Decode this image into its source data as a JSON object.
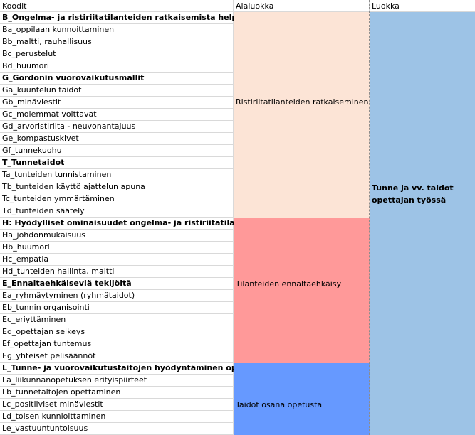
{
  "header": {
    "col_a": "Koodit",
    "col_b": "Alaluokka",
    "col_c": "Luokka"
  },
  "codes": [
    {
      "text": "B_Ongelma- ja ristiriitatilanteiden ratkaisemista helpottavat tekijät",
      "bold": true
    },
    {
      "text": "Ba_oppilaan kunnoittaminen",
      "bold": false
    },
    {
      "text": "Bb_maltti, rauhallisuus",
      "bold": false
    },
    {
      "text": "Bc_perustelut",
      "bold": false
    },
    {
      "text": "Bd_huumori",
      "bold": false
    },
    {
      "text": "G_Gordonin vuorovaikutusmallit",
      "bold": true
    },
    {
      "text": "Ga_kuuntelun taidot",
      "bold": false
    },
    {
      "text": "Gb_minäviestit",
      "bold": false
    },
    {
      "text": "Gc_molemmat voittavat",
      "bold": false
    },
    {
      "text": "Gd_arvoristiriita - neuvonantajuus",
      "bold": false
    },
    {
      "text": "Ge_kompastuskivet",
      "bold": false
    },
    {
      "text": "Gf_tunnekuohu",
      "bold": false
    },
    {
      "text": "T_Tunnetaidot",
      "bold": true
    },
    {
      "text": "Ta_tunteiden tunnistaminen",
      "bold": false
    },
    {
      "text": "Tb_tunteiden käyttö ajattelun apuna",
      "bold": false
    },
    {
      "text": "Tc_tunteiden ymmärtäminen",
      "bold": false
    },
    {
      "text": "Td_tunteiden säätely",
      "bold": false
    },
    {
      "text": "H: Hyödylliset ominaisuudet ongelma- ja ristiriitatilanteissa",
      "bold": true
    },
    {
      "text": "Ha_johdonmukaisuus",
      "bold": false
    },
    {
      "text": "Hb_huumori",
      "bold": false
    },
    {
      "text": "Hc_empatia",
      "bold": false
    },
    {
      "text": "Hd_tunteiden hallinta, maltti",
      "bold": false
    },
    {
      "text": "E_Ennaltaehkäiseviä tekijöitä",
      "bold": true
    },
    {
      "text": "Ea_ryhmäytyminen (ryhmätaidot)",
      "bold": false
    },
    {
      "text": "Eb_tunnin organisointi",
      "bold": false
    },
    {
      "text": "Ec_eriyttäminen",
      "bold": false
    },
    {
      "text": "Ed_opettajan selkeys",
      "bold": false
    },
    {
      "text": "Ef_opettajan tuntemus",
      "bold": false
    },
    {
      "text": "Eg_yhteiset pelisäännöt",
      "bold": false
    },
    {
      "text": "L_Tunne- ja vuorovaikutustaitojen hyödyntäminen opetuksessa",
      "bold": true
    },
    {
      "text": "La_liikunnanopetuksen erityispiirteet",
      "bold": false
    },
    {
      "text": "Lb_tunnetaitojen opettaminen",
      "bold": false
    },
    {
      "text": "Lc_positiiviset minäviestit",
      "bold": false
    },
    {
      "text": "Ld_toisen kunnioittaminen",
      "bold": false
    },
    {
      "text": "Le_vastuuntuntoisuus",
      "bold": false
    }
  ],
  "alaluokka": [
    {
      "label": "Ristiriitatilanteiden ratkaiseminen",
      "color": "#fce4d6"
    },
    {
      "label": "Tilanteiden ennaltaehkäisy",
      "color": "#ff9999"
    },
    {
      "label": "Taidot osana opetusta",
      "color": "#6699ff"
    }
  ],
  "luokka": {
    "label_line1": "Tunne ja vv. taidot",
    "label_line2": "opettajan työssä",
    "color": "#9dc3e6"
  }
}
